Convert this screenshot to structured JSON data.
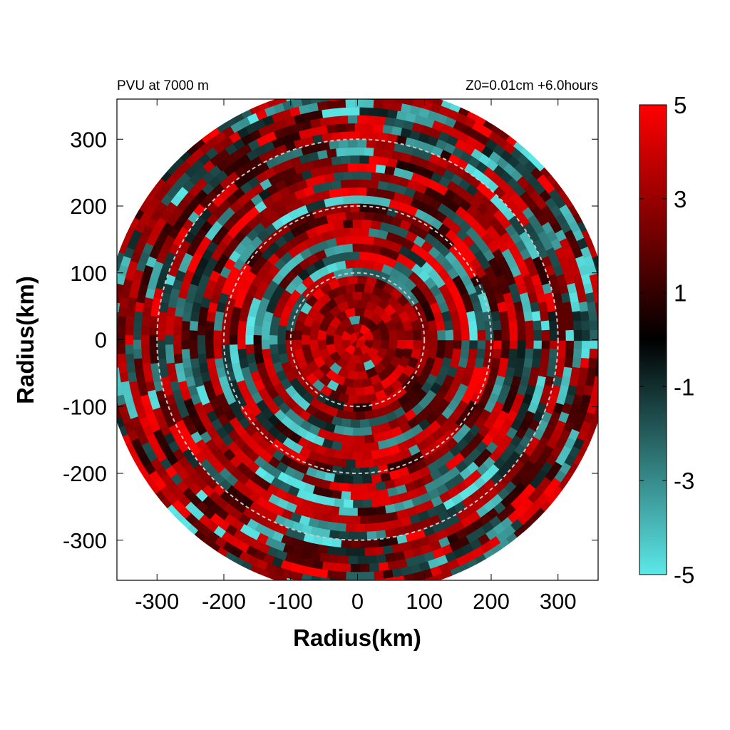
{
  "header": {
    "left_title": "PVU at  7000 m",
    "right_title": "Z0=0.01cm  +6.0hours"
  },
  "chart_data": {
    "type": "heatmap",
    "projection": "polar field on cartesian axes",
    "xlabel": "Radius(km)",
    "ylabel": "Radius(km)",
    "xlim": [
      -360,
      360
    ],
    "ylim": [
      -360,
      360
    ],
    "x_ticks": [
      "-300",
      "-200",
      "-100",
      "0",
      "100",
      "200",
      "300"
    ],
    "x_tick_values": [
      -300,
      -200,
      -100,
      0,
      100,
      200,
      300
    ],
    "y_ticks": [
      "300",
      "200",
      "100",
      "0",
      "-100",
      "-200",
      "-300"
    ],
    "y_tick_values": [
      300,
      200,
      100,
      0,
      -100,
      -200,
      -300
    ],
    "domain_radius_km": 380,
    "reference_circles_km": [
      100,
      200,
      300
    ],
    "reference_circle_style": "dashed, light gray",
    "colorbar": {
      "range": [
        -5,
        5
      ],
      "tick_labels": [
        "5",
        "3",
        "1",
        "-1",
        "-3",
        "-5"
      ],
      "tick_values": [
        5,
        3,
        1,
        -1,
        -3,
        -5
      ],
      "colors": {
        "min": "#5ce8e8",
        "mid": "#000000",
        "max": "#ff0000"
      }
    },
    "field_description": {
      "inner_core_radius_km": 100,
      "inner_core_character": "predominantly positive (red, ~2-5 PVU)",
      "outer_character": "alternating banded positive (red) and negative (cyan) streaks in azimuthal arcs",
      "streak_spacing_km": 20
    },
    "grid": false
  }
}
